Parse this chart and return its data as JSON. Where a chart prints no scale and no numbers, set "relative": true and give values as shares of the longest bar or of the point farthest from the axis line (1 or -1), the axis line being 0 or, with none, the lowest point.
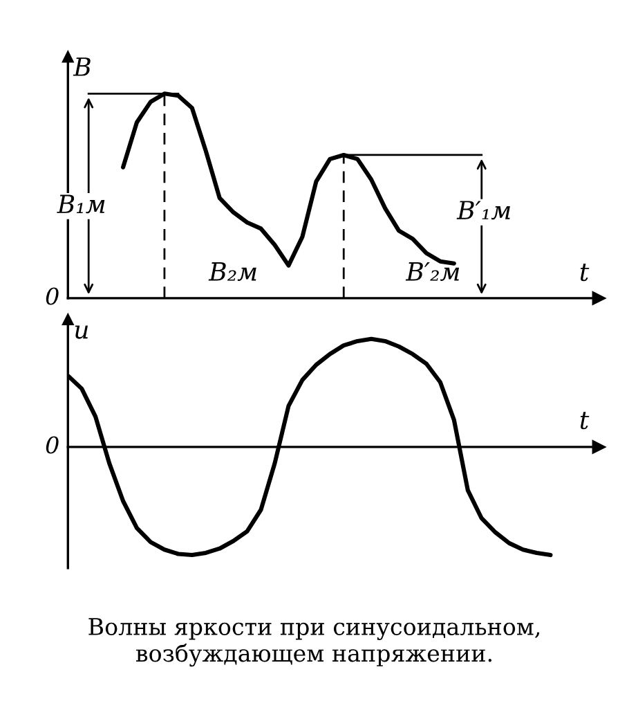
{
  "chart_data": [
    {
      "type": "line",
      "relative": true,
      "ylabel": "B",
      "xlabel": "t",
      "line_style": "solid",
      "marker": "none",
      "grid": false,
      "legend": false,
      "categories": [
        null,
        null,
        null,
        null,
        null,
        null,
        null,
        null,
        null,
        null,
        null,
        null,
        null,
        null,
        null,
        null,
        null,
        null,
        null,
        null,
        null,
        null,
        null,
        null,
        null,
        null,
        null,
        null,
        null,
        null,
        null,
        null,
        null,
        null,
        null,
        null,
        null,
        null,
        null
      ],
      "series": [
        {
          "color": "#000000",
          "values": [
            null,
            null,
            null,
            null,
            0.64,
            0.86,
            0.96,
            1.0,
            0.99,
            0.93,
            0.72,
            0.49,
            0.42,
            0.37,
            0.34,
            0.26,
            0.16,
            0.3,
            0.57,
            0.68,
            0.7,
            0.68,
            0.58,
            0.44,
            0.33,
            0.29,
            0.22,
            0.18,
            0.17,
            null,
            null,
            null,
            null,
            null,
            null,
            null,
            null,
            null,
            null
          ]
        }
      ],
      "ref_lines": [
        {
          "axis": "y",
          "value": 1.0,
          "color": "#000000",
          "line_style": "solid"
        },
        {
          "axis": "y",
          "value": 0.7,
          "color": "#000000",
          "line_style": "solid"
        }
      ],
      "annotations": [
        "0",
        "B₁м",
        "B₂м",
        "B′₁м",
        "B′₂м"
      ]
    },
    {
      "type": "line",
      "relative": true,
      "ylabel": "u",
      "xlabel": "t",
      "line_style": "solid",
      "marker": "none",
      "grid": false,
      "legend": false,
      "categories": [
        null,
        null,
        null,
        null,
        null,
        null,
        null,
        null,
        null,
        null,
        null,
        null,
        null,
        null,
        null,
        null,
        null,
        null,
        null,
        null,
        null,
        null,
        null,
        null,
        null,
        null,
        null,
        null,
        null,
        null,
        null,
        null,
        null,
        null,
        null,
        null,
        null,
        null,
        null
      ],
      "series": [
        {
          "color": "#000000",
          "values": [
            0.66,
            0.54,
            0.28,
            -0.15,
            -0.5,
            -0.75,
            -0.88,
            -0.95,
            -0.99,
            -1.0,
            -0.98,
            -0.94,
            -0.87,
            -0.78,
            -0.58,
            -0.15,
            0.38,
            0.62,
            0.76,
            0.86,
            0.94,
            0.98,
            1.0,
            0.98,
            0.93,
            0.86,
            0.77,
            0.6,
            0.25,
            -0.4,
            -0.66,
            -0.79,
            -0.89,
            -0.95,
            -0.98,
            -1.0,
            null,
            null,
            null
          ]
        }
      ],
      "annotations": [
        "0",
        "Волны яркости при синусоидальном, возбуждающем напряжении."
      ]
    }
  ]
}
